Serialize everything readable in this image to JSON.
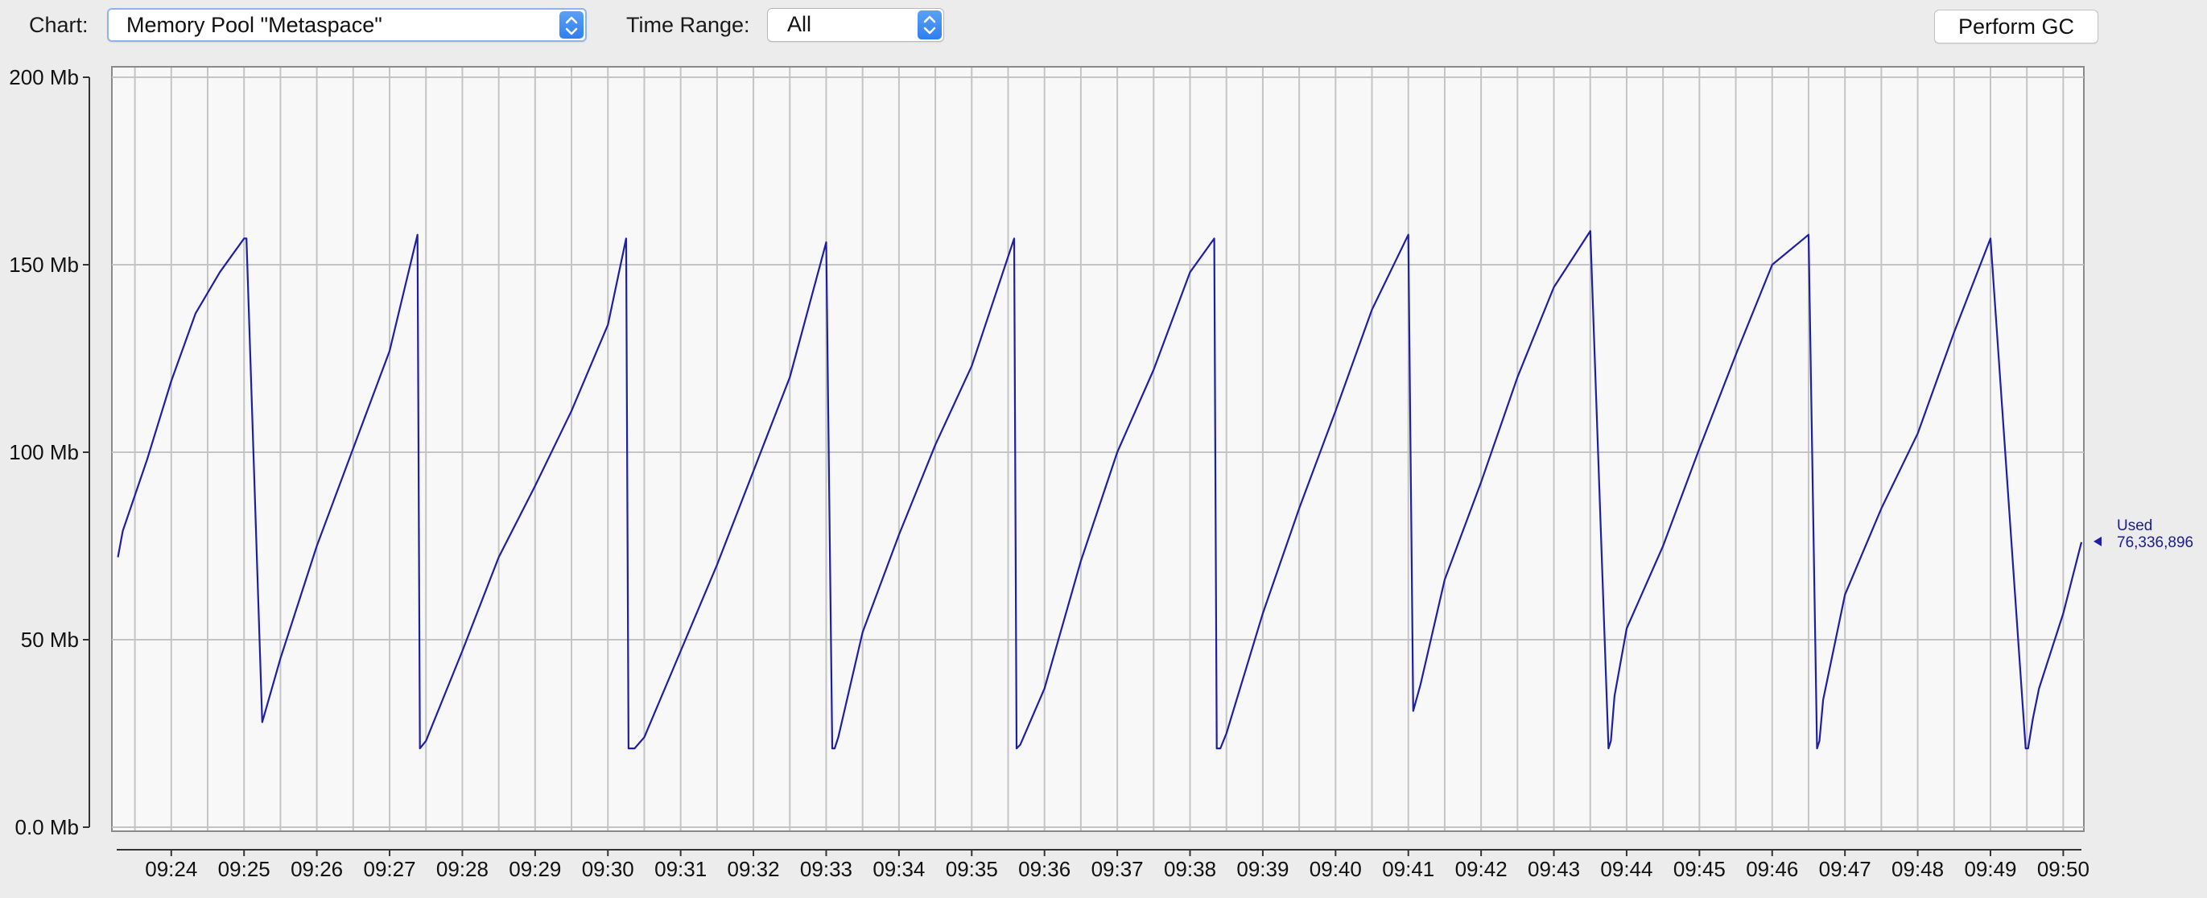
{
  "toolbar": {
    "chart_label": "Chart:",
    "chart_value": "Memory Pool \"Metaspace\"",
    "time_range_label": "Time Range:",
    "time_range_value": "All",
    "perform_gc_label": "Perform GC"
  },
  "colors": {
    "series": "#1f1fa3",
    "grid": "#c4c4c4",
    "plot_background": "#f8f8f8",
    "window_background": "#ececec",
    "accent": "#3b86f2"
  },
  "legend": {
    "name": "Used",
    "value": "76,336,896"
  },
  "chart_data": {
    "type": "line",
    "title": "",
    "xlabel": "",
    "ylabel": "",
    "y_unit": "Mb",
    "ylim": [
      0,
      200
    ],
    "yticks": [
      0,
      50,
      100,
      150,
      200
    ],
    "ytick_labels": [
      "0.0 Mb",
      "50 Mb",
      "100 Mb",
      "150 Mb",
      "200 Mb"
    ],
    "x_domain": [
      "09:23:15",
      "09:50:15"
    ],
    "xtick_labels": [
      "09:24",
      "09:25",
      "09:26",
      "09:27",
      "09:28",
      "09:29",
      "09:30",
      "09:31",
      "09:32",
      "09:33",
      "09:34",
      "09:35",
      "09:36",
      "09:37",
      "09:38",
      "09:39",
      "09:40",
      "09:41",
      "09:42",
      "09:43",
      "09:44",
      "09:45",
      "09:46",
      "09:47",
      "09:48",
      "09:49",
      "09:50"
    ],
    "grid": true,
    "series": [
      {
        "name": "Used",
        "x": [
          "09:23:16",
          "09:23:20",
          "09:23:40",
          "09:24:00",
          "09:24:20",
          "09:24:40",
          "09:25:00",
          "09:25:02",
          "09:25:15",
          "09:25:30",
          "09:26:00",
          "09:26:30",
          "09:27:00",
          "09:27:23",
          "09:27:25",
          "09:27:30",
          "09:28:00",
          "09:28:30",
          "09:29:00",
          "09:29:30",
          "09:30:00",
          "09:30:15",
          "09:30:17",
          "09:30:22",
          "09:30:30",
          "09:31:00",
          "09:31:30",
          "09:32:00",
          "09:32:30",
          "09:33:00",
          "09:33:05",
          "09:33:07",
          "09:33:10",
          "09:33:30",
          "09:34:00",
          "09:34:30",
          "09:35:00",
          "09:35:35",
          "09:35:37",
          "09:35:40",
          "09:36:00",
          "09:36:30",
          "09:37:00",
          "09:37:30",
          "09:38:00",
          "09:38:20",
          "09:38:22",
          "09:38:25",
          "09:38:30",
          "09:39:00",
          "09:39:30",
          "09:40:00",
          "09:40:30",
          "09:41:00",
          "09:41:04",
          "09:41:10",
          "09:41:30",
          "09:42:00",
          "09:42:30",
          "09:43:00",
          "09:43:30",
          "09:43:45",
          "09:43:47",
          "09:43:50",
          "09:44:00",
          "09:44:30",
          "09:45:00",
          "09:45:30",
          "09:46:00",
          "09:46:30",
          "09:46:37",
          "09:46:39",
          "09:46:42",
          "09:47:00",
          "09:47:30",
          "09:48:00",
          "09:48:30",
          "09:49:00",
          "09:49:29",
          "09:49:31",
          "09:49:35",
          "09:49:40",
          "09:50:00",
          "09:50:15"
        ],
        "values": [
          72,
          79,
          98,
          119,
          137,
          148,
          157,
          157,
          28,
          45,
          75,
          101,
          127,
          158,
          21,
          23,
          47,
          72,
          91,
          111,
          134,
          157,
          21,
          21,
          24,
          47,
          70,
          95,
          120,
          156,
          21,
          21,
          24,
          52,
          78,
          102,
          123,
          157,
          21,
          22,
          37,
          71,
          100,
          122,
          148,
          157,
          21,
          21,
          25,
          57,
          85,
          111,
          138,
          158,
          31,
          38,
          66,
          92,
          120,
          144,
          159,
          21,
          23,
          35,
          53,
          75,
          101,
          126,
          150,
          158,
          21,
          23,
          34,
          62,
          85,
          105,
          132,
          157,
          21,
          21,
          29,
          37,
          57,
          76
        ]
      }
    ]
  }
}
